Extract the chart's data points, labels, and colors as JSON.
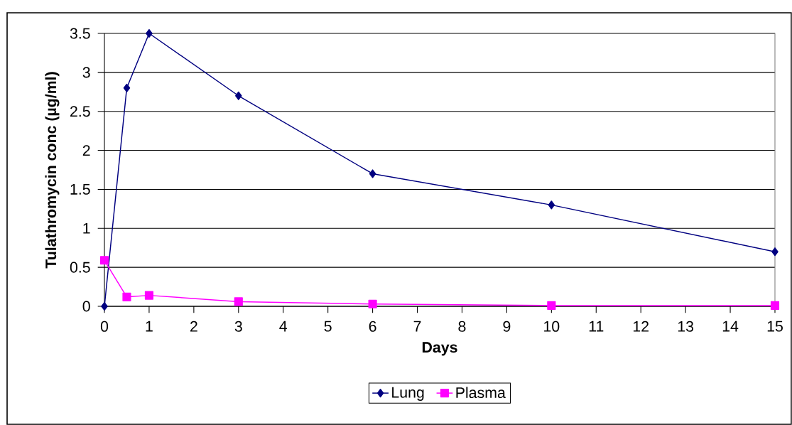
{
  "chart_data": {
    "type": "line",
    "xlabel": "Days",
    "ylabel": "Tulathromycin conc (µg/ml)",
    "xlim": [
      0,
      15
    ],
    "ylim": [
      0,
      3.5
    ],
    "xticks": [
      0,
      1,
      2,
      3,
      4,
      5,
      6,
      7,
      8,
      9,
      10,
      11,
      12,
      13,
      14,
      15
    ],
    "yticks": [
      0,
      0.5,
      1,
      1.5,
      2,
      2.5,
      3,
      3.5
    ],
    "grid": "y",
    "legend": "bottom",
    "line_style": "solid",
    "series": [
      {
        "name": "Lung",
        "color": "#000080",
        "marker": "diamond",
        "x": [
          0,
          0.5,
          1,
          3,
          6,
          10,
          15
        ],
        "values": [
          0,
          2.8,
          3.5,
          2.7,
          1.7,
          1.3,
          0.7
        ]
      },
      {
        "name": "Plasma",
        "color": "#ff00ff",
        "marker": "square",
        "x": [
          0,
          0.5,
          1,
          3,
          6,
          10,
          15
        ],
        "values": [
          0.59,
          0.12,
          0.14,
          0.06,
          0.03,
          0.01,
          0.01
        ]
      }
    ]
  }
}
